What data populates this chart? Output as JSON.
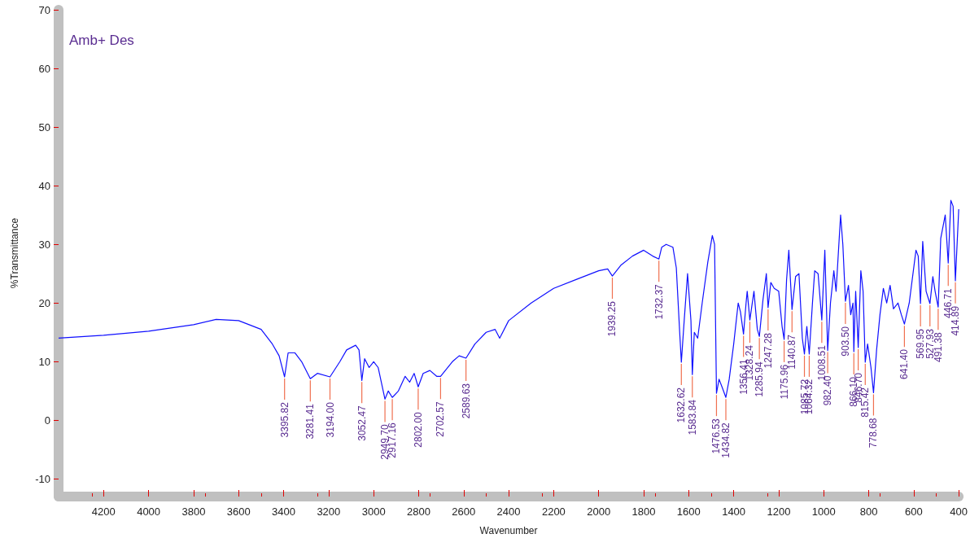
{
  "chart_data": {
    "type": "line",
    "title": "Amb+ Des",
    "xlabel": "Wavenumber",
    "ylabel": "%Transmittance",
    "xlim": [
      4400,
      400
    ],
    "xticks": [
      4200,
      4000,
      3800,
      3600,
      3400,
      3200,
      3000,
      2800,
      2600,
      2400,
      2200,
      2000,
      1800,
      1600,
      1400,
      1200,
      1000,
      800,
      600,
      400
    ],
    "ylim": [
      -13,
      70
    ],
    "yticks": [
      -10,
      0,
      10,
      20,
      30,
      40,
      50,
      60,
      70
    ],
    "grid": false,
    "marker": "none",
    "line_style": "solid",
    "series": [
      {
        "color": "#1010ff",
        "x": [
          4400,
          4200,
          4000,
          3800,
          3700,
          3600,
          3500,
          3450,
          3420,
          3395.82,
          3380,
          3350,
          3320,
          3281.41,
          3250,
          3194,
          3150,
          3120,
          3080,
          3065,
          3052.47,
          3040,
          3020,
          3000,
          2980,
          2949.7,
          2935,
          2917.16,
          2890,
          2860,
          2840,
          2820,
          2802,
          2780,
          2750,
          2720,
          2702.57,
          2650,
          2620,
          2589.63,
          2550,
          2500,
          2460,
          2440,
          2400,
          2300,
          2200,
          2100,
          2000,
          1960,
          1939.25,
          1900,
          1850,
          1800,
          1760,
          1732.37,
          1720,
          1700,
          1670,
          1655,
          1640,
          1632.62,
          1620,
          1605,
          1590,
          1583.84,
          1575,
          1560,
          1540,
          1515,
          1495,
          1485,
          1476.53,
          1465,
          1450,
          1434.82,
          1420,
          1400,
          1380,
          1370,
          1356.41,
          1345,
          1340,
          1328.24,
          1310,
          1295,
          1285.94,
          1270,
          1255,
          1247.28,
          1235,
          1220,
          1200,
          1185,
          1175.96,
          1165,
          1155,
          1140.87,
          1125,
          1110,
          1095,
          1085.72,
          1075,
          1064.32,
          1050,
          1040,
          1025,
          1008.51,
          995,
          982.4,
          970,
          955,
          945,
          925,
          915,
          903.5,
          890,
          880,
          870,
          866.1,
          858,
          846.7,
          835,
          825,
          815.42,
          805,
          790,
          778.68,
          765,
          750,
          735,
          720,
          705,
          690,
          670,
          655,
          641.4,
          620,
          590,
          580,
          569.95,
          560,
          545,
          527.93,
          515,
          505,
          491.38,
          480,
          460,
          446.71,
          435,
          425,
          414.89,
          400
        ],
        "values": [
          14,
          14.5,
          15.2,
          16.3,
          17.2,
          17,
          15.5,
          13,
          11,
          7.4,
          11.5,
          11.5,
          10,
          7.1,
          8,
          7.4,
          10,
          12,
          12.8,
          12,
          6.8,
          10.5,
          9,
          10,
          9,
          3.6,
          5,
          3.9,
          5,
          7.5,
          6.5,
          8,
          5.7,
          8,
          8.5,
          7.5,
          7.5,
          10,
          11,
          10.6,
          13,
          15,
          15.5,
          14,
          17,
          20,
          22.5,
          24,
          25.5,
          25.8,
          24.6,
          26.5,
          28,
          29,
          28,
          27.5,
          29.5,
          30,
          29.5,
          26,
          15,
          9.9,
          17,
          25,
          17,
          7.8,
          15,
          14,
          20,
          27,
          31.5,
          30,
          4.6,
          7,
          5.5,
          3.9,
          7,
          13,
          20,
          18.5,
          14.7,
          20,
          22,
          17.1,
          22,
          15.5,
          14.3,
          20.5,
          25,
          19.2,
          23.5,
          22.5,
          22,
          16,
          13.8,
          24,
          29,
          18.9,
          24.5,
          25,
          14,
          11.3,
          16,
          11.3,
          20,
          25.5,
          25,
          17.1,
          29,
          11.9,
          20,
          25.5,
          22,
          35,
          30,
          20.3,
          23,
          18,
          20,
          11.7,
          22,
          12.4,
          25.5,
          22,
          9.9,
          13,
          9,
          4.7,
          12,
          18,
          22.5,
          20,
          23,
          19,
          20,
          18,
          16.4,
          20,
          29,
          28,
          19.9,
          30.5,
          22,
          19.9,
          24.5,
          22,
          19.3,
          31,
          35,
          26.8,
          37.5,
          36.5,
          23.8,
          36
        ]
      }
    ],
    "annotations": [
      {
        "text": "3395.82",
        "x": 3395.82,
        "y": 7.4
      },
      {
        "text": "3281.41",
        "x": 3281.41,
        "y": 7.1
      },
      {
        "text": "3194.00",
        "x": 3194,
        "y": 7.4
      },
      {
        "text": "3052.47",
        "x": 3052.47,
        "y": 6.8
      },
      {
        "text": "2949.70",
        "x": 2949.7,
        "y": 3.6
      },
      {
        "text": "2917.16",
        "x": 2917.16,
        "y": 3.9
      },
      {
        "text": "2802.00",
        "x": 2802,
        "y": 5.7
      },
      {
        "text": "2702.57",
        "x": 2702.57,
        "y": 7.5
      },
      {
        "text": "2589.63",
        "x": 2589.63,
        "y": 10.6
      },
      {
        "text": "1939.25",
        "x": 1939.25,
        "y": 24.6
      },
      {
        "text": "1732.37",
        "x": 1732.37,
        "y": 27.5
      },
      {
        "text": "1632.62",
        "x": 1632.62,
        "y": 9.9
      },
      {
        "text": "1583.84",
        "x": 1583.84,
        "y": 7.8
      },
      {
        "text": "1476.53",
        "x": 1476.53,
        "y": 4.6
      },
      {
        "text": "1434.82",
        "x": 1434.82,
        "y": 3.9
      },
      {
        "text": "1356.41",
        "x": 1356.41,
        "y": 14.7
      },
      {
        "text": "1328.24",
        "x": 1328.24,
        "y": 17.1
      },
      {
        "text": "1285.94",
        "x": 1285.94,
        "y": 14.3
      },
      {
        "text": "1247.28",
        "x": 1247.28,
        "y": 19.2
      },
      {
        "text": "1175.96",
        "x": 1175.96,
        "y": 13.8
      },
      {
        "text": "1140.87",
        "x": 1140.87,
        "y": 18.9
      },
      {
        "text": "1085.72",
        "x": 1085.72,
        "y": 11.3
      },
      {
        "text": "1064.32",
        "x": 1064.32,
        "y": 11.3
      },
      {
        "text": "1008.51",
        "x": 1008.51,
        "y": 17.1
      },
      {
        "text": "982.40",
        "x": 982.4,
        "y": 11.9
      },
      {
        "text": "903.50",
        "x": 903.5,
        "y": 20.3
      },
      {
        "text": "866.10",
        "x": 866.1,
        "y": 11.7
      },
      {
        "text": "846.70",
        "x": 846.7,
        "y": 12.4
      },
      {
        "text": "815.42",
        "x": 815.42,
        "y": 9.9
      },
      {
        "text": "778.68",
        "x": 778.68,
        "y": 4.7
      },
      {
        "text": "641.40",
        "x": 641.4,
        "y": 16.4
      },
      {
        "text": "569.95",
        "x": 569.95,
        "y": 19.9
      },
      {
        "text": "527.93",
        "x": 527.93,
        "y": 19.9
      },
      {
        "text": "491.38",
        "x": 491.38,
        "y": 19.3
      },
      {
        "text": "446.71",
        "x": 446.71,
        "y": 26.8
      },
      {
        "text": "414.89",
        "x": 414.89,
        "y": 23.8
      }
    ]
  }
}
